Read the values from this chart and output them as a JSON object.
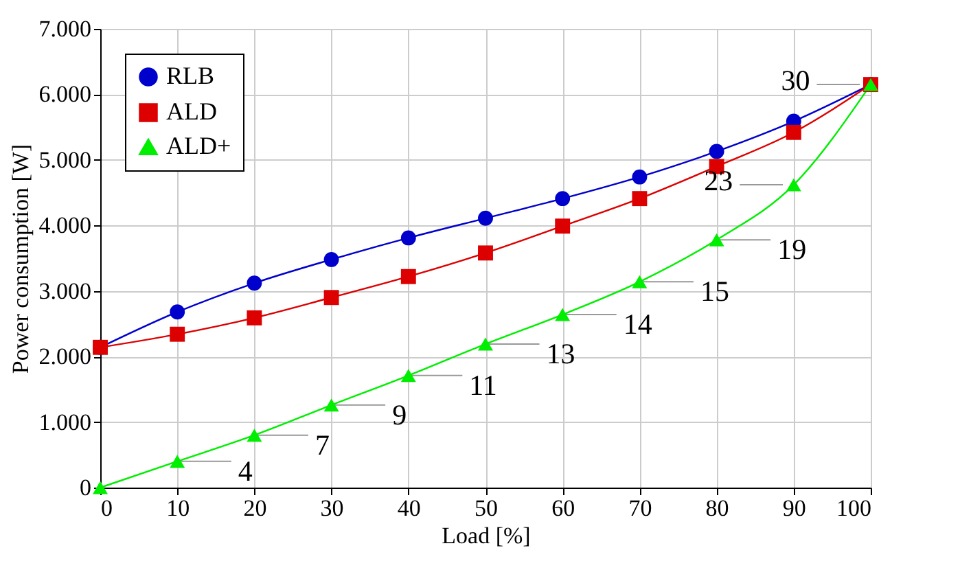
{
  "chart_data": {
    "type": "line",
    "xlabel": "Load [%]",
    "ylabel": "Power consumption [W]",
    "x": [
      0,
      10,
      20,
      30,
      40,
      50,
      60,
      70,
      80,
      90,
      100
    ],
    "series": [
      {
        "name": "RLB",
        "color": "#0000cc",
        "marker": "circle",
        "values": [
          2140,
          2680,
          3120,
          3480,
          3810,
          4110,
          4410,
          4740,
          5130,
          5590,
          6150
        ]
      },
      {
        "name": "ALD",
        "color": "#dd0000",
        "marker": "square",
        "values": [
          2140,
          2340,
          2590,
          2900,
          3220,
          3580,
          3990,
          4410,
          4900,
          5420,
          6150
        ]
      },
      {
        "name": "ALD+",
        "color": "#00ee00",
        "marker": "triangle",
        "values": [
          0,
          400,
          800,
          1260,
          1710,
          2190,
          2640,
          3140,
          3780,
          4620,
          6150
        ]
      }
    ],
    "annotations": [
      {
        "text": "4",
        "x": 10,
        "y": 400
      },
      {
        "text": "7",
        "x": 20,
        "y": 800
      },
      {
        "text": "9",
        "x": 30,
        "y": 1260
      },
      {
        "text": "11",
        "x": 40,
        "y": 1710
      },
      {
        "text": "13",
        "x": 50,
        "y": 2190
      },
      {
        "text": "14",
        "x": 60,
        "y": 2640
      },
      {
        "text": "15",
        "x": 70,
        "y": 3140
      },
      {
        "text": "19",
        "x": 80,
        "y": 3780
      },
      {
        "text": "23",
        "x": 90,
        "y": 4620
      },
      {
        "text": "30",
        "x": 100,
        "y": 6150
      }
    ],
    "xlim": [
      0,
      100
    ],
    "xticks": [
      0,
      10,
      20,
      30,
      40,
      50,
      60,
      70,
      80,
      90,
      100
    ],
    "ylim": [
      0,
      7000
    ],
    "yticks": [
      0,
      {
        "value": 1000,
        "label": "1.000"
      },
      {
        "value": 2000,
        "label": "2.000"
      },
      {
        "value": 3000,
        "label": "3.000"
      },
      {
        "value": 4000,
        "label": "4.000"
      },
      {
        "value": 5000,
        "label": "5.000"
      },
      {
        "value": 6000,
        "label": "6.000"
      },
      {
        "value": 7000,
        "label": "7.000"
      }
    ],
    "grid": true,
    "legend": "top left",
    "line_style": "solid"
  }
}
